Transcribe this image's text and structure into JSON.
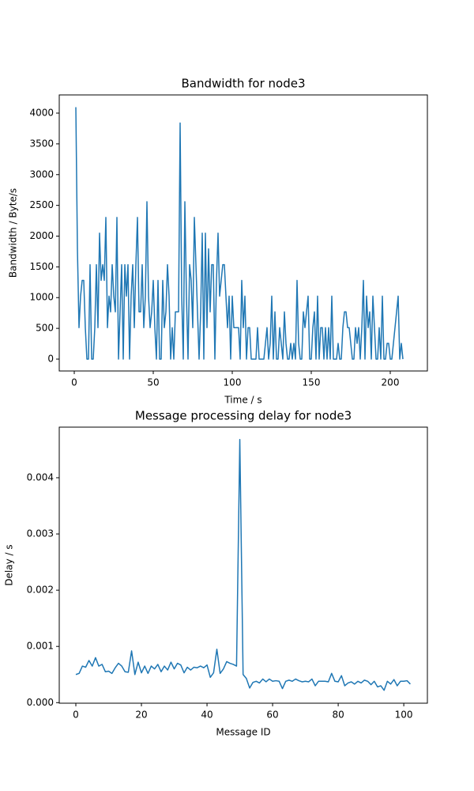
{
  "chart_data": [
    {
      "type": "line",
      "title": "Bandwidth for node3",
      "xlabel": "Time / s",
      "ylabel": "Bandwidth / Byte/s",
      "x": [
        1,
        2,
        3,
        4,
        5,
        6,
        7,
        8,
        9,
        10,
        11,
        12,
        13,
        14,
        15,
        16,
        17,
        18,
        19,
        20,
        21,
        22,
        23,
        24,
        25,
        26,
        27,
        28,
        29,
        30,
        31,
        32,
        33,
        34,
        35,
        36,
        37,
        38,
        39,
        40,
        41,
        42,
        43,
        44,
        45,
        46,
        47,
        48,
        49,
        50,
        51,
        52,
        53,
        54,
        55,
        56,
        57,
        58,
        59,
        60,
        61,
        62,
        63,
        64,
        65,
        66,
        67,
        68,
        69,
        70,
        71,
        72,
        73,
        74,
        75,
        76,
        77,
        78,
        79,
        80,
        81,
        82,
        83,
        84,
        85,
        86,
        87,
        88,
        89,
        90,
        91,
        92,
        93,
        94,
        95,
        96,
        97,
        98,
        99,
        100,
        101,
        102,
        103,
        104,
        105,
        106,
        107,
        108,
        109,
        110,
        111,
        112,
        113,
        114,
        115,
        116,
        117,
        118,
        119,
        120,
        121,
        122,
        123,
        124,
        125,
        126,
        127,
        128,
        129,
        130,
        131,
        132,
        133,
        134,
        135,
        136,
        137,
        138,
        139,
        140,
        141,
        142,
        143,
        144,
        145,
        146,
        147,
        148,
        149,
        150,
        151,
        152,
        153,
        154,
        155,
        156,
        157,
        158,
        159,
        160,
        161,
        162,
        163,
        164,
        165,
        166,
        167,
        168,
        169,
        170,
        171,
        172,
        173,
        174,
        175,
        176,
        177,
        178,
        179,
        180,
        181,
        182,
        183,
        184,
        185,
        186,
        187,
        188,
        189,
        190,
        191,
        192,
        193,
        194,
        195,
        196,
        197,
        198,
        199,
        200,
        201,
        202,
        203,
        204,
        205,
        206,
        207,
        208
      ],
      "series": [
        {
          "name": "bandwidth",
          "color": "#1f77b4",
          "values": [
            4096,
            1792,
            512,
            1024,
            1280,
            1280,
            512,
            0,
            0,
            1536,
            0,
            0,
            512,
            1536,
            512,
            2048,
            1280,
            1536,
            1280,
            2304,
            512,
            1024,
            768,
            1536,
            1024,
            768,
            2304,
            0,
            768,
            1536,
            0,
            1536,
            1024,
            1536,
            0,
            1024,
            1536,
            512,
            1536,
            2304,
            768,
            768,
            1536,
            512,
            1024,
            2560,
            1024,
            512,
            768,
            1280,
            512,
            0,
            1280,
            0,
            0,
            1280,
            512,
            768,
            1536,
            1024,
            0,
            512,
            0,
            768,
            768,
            768,
            3840,
            1024,
            0,
            2560,
            1024,
            0,
            1536,
            1280,
            512,
            2304,
            1536,
            768,
            0,
            768,
            2048,
            0,
            2048,
            512,
            1792,
            768,
            1536,
            1536,
            0,
            1280,
            2048,
            1024,
            1280,
            1536,
            1536,
            1024,
            512,
            1024,
            0,
            1024,
            512,
            512,
            512,
            512,
            0,
            1280,
            512,
            1024,
            0,
            512,
            512,
            0,
            0,
            0,
            0,
            512,
            0,
            0,
            0,
            0,
            256,
            512,
            0,
            256,
            1024,
            0,
            768,
            0,
            0,
            512,
            256,
            0,
            768,
            256,
            0,
            0,
            256,
            0,
            256,
            0,
            1280,
            256,
            0,
            0,
            768,
            512,
            768,
            1024,
            0,
            0,
            512,
            768,
            0,
            1024,
            0,
            512,
            512,
            0,
            512,
            0,
            512,
            0,
            1024,
            0,
            0,
            0,
            256,
            0,
            0,
            512,
            768,
            768,
            512,
            512,
            256,
            0,
            0,
            512,
            256,
            512,
            0,
            512,
            1280,
            0,
            1024,
            512,
            768,
            0,
            1024,
            512,
            0,
            0,
            512,
            0,
            1024,
            0,
            0,
            256,
            256,
            0,
            0,
            256,
            512,
            768,
            1024,
            0,
            256,
            0
          ]
        }
      ],
      "xlim": [
        -9.5,
        223.5
      ],
      "ylim": [
        -193,
        4296
      ],
      "xticks": [
        0,
        50,
        100,
        150,
        200
      ],
      "yticks": [
        0,
        500,
        1000,
        1500,
        2000,
        2500,
        3000,
        3500,
        4000
      ]
    },
    {
      "type": "line",
      "title": "Message processing delay for node3",
      "xlabel": "Message ID",
      "ylabel": "Delay / s",
      "x": [
        0,
        1,
        2,
        3,
        4,
        5,
        6,
        7,
        8,
        9,
        10,
        11,
        12,
        13,
        14,
        15,
        16,
        17,
        18,
        19,
        20,
        21,
        22,
        23,
        24,
        25,
        26,
        27,
        28,
        29,
        30,
        31,
        32,
        33,
        34,
        35,
        36,
        37,
        38,
        39,
        40,
        41,
        42,
        43,
        44,
        45,
        46,
        47,
        48,
        49,
        50,
        51,
        52,
        53,
        54,
        55,
        56,
        57,
        58,
        59,
        60,
        61,
        62,
        63,
        64,
        65,
        66,
        67,
        68,
        69,
        70,
        71,
        72,
        73,
        74,
        75,
        76,
        77,
        78,
        79,
        80,
        81,
        82,
        83,
        84,
        85,
        86,
        87,
        88,
        89,
        90,
        91,
        92,
        93,
        94,
        95,
        96,
        97,
        98,
        99,
        100,
        101,
        102
      ],
      "series": [
        {
          "name": "delay",
          "color": "#1f77b4",
          "values": [
            0.0005,
            0.00052,
            0.00065,
            0.00063,
            0.00075,
            0.00065,
            0.0008,
            0.00065,
            0.00068,
            0.00055,
            0.00056,
            0.00052,
            0.00062,
            0.0007,
            0.00065,
            0.00055,
            0.00054,
            0.00092,
            0.0005,
            0.00072,
            0.00053,
            0.00065,
            0.00052,
            0.00065,
            0.0006,
            0.00068,
            0.00055,
            0.00065,
            0.00058,
            0.00072,
            0.0006,
            0.0007,
            0.00067,
            0.00053,
            0.00063,
            0.00058,
            0.00063,
            0.00062,
            0.00065,
            0.00062,
            0.00067,
            0.00045,
            0.00053,
            0.00095,
            0.00052,
            0.0006,
            0.00073,
            0.0007,
            0.00068,
            0.00065,
            0.00468,
            0.0005,
            0.00043,
            0.00026,
            0.00036,
            0.00038,
            0.00035,
            0.00042,
            0.00037,
            0.00042,
            0.00038,
            0.00039,
            0.00038,
            0.00025,
            0.00038,
            0.0004,
            0.00038,
            0.00042,
            0.00039,
            0.00037,
            0.00038,
            0.00037,
            0.00042,
            0.0003,
            0.00038,
            0.00038,
            0.00038,
            0.00037,
            0.00052,
            0.00038,
            0.00037,
            0.00048,
            0.0003,
            0.00035,
            0.00037,
            0.00033,
            0.00038,
            0.00035,
            0.0004,
            0.00038,
            0.00032,
            0.00038,
            0.00028,
            0.0003,
            0.00022,
            0.00038,
            0.00033,
            0.00041,
            0.0003,
            0.00038,
            0.00038,
            0.00039,
            0.00033
          ]
        }
      ],
      "xlim": [
        -5.06,
        107.2
      ],
      "ylim": [
        -1e-05,
        0.0049
      ],
      "xticks": [
        0,
        20,
        40,
        60,
        80,
        100
      ],
      "yticks": [
        {
          "value": 0,
          "label": "0.000"
        },
        0.001,
        0.002,
        0.003,
        0.004
      ]
    }
  ]
}
